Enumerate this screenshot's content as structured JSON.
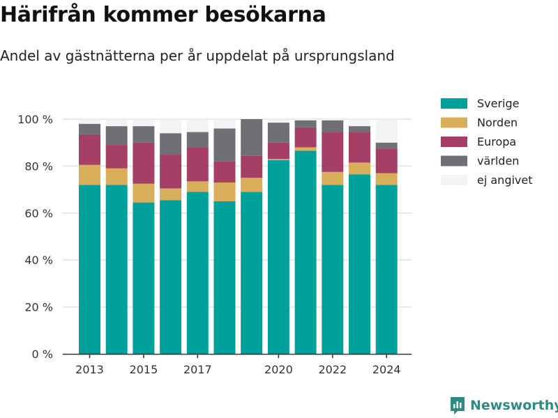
{
  "header": {
    "title": "Härifrån kommer besökarna",
    "subtitle": "Andel av gästnätterna per år uppdelat på ursprungsland"
  },
  "brand": {
    "name": "Newsworthy",
    "icon": "newsworthy-logo-icon"
  },
  "chart_data": {
    "type": "bar",
    "stacked": true,
    "x": [
      2013,
      2014,
      2015,
      2016,
      2017,
      2018,
      2019,
      2020,
      2021,
      2022,
      2023,
      2024
    ],
    "x_tick_labels": [
      "2013",
      "2015",
      "2017",
      "2020",
      "2022",
      "2024"
    ],
    "x_tick_values": [
      2013,
      2015,
      2017,
      2020,
      2022,
      2024
    ],
    "ylim": [
      0,
      100
    ],
    "y_ticks": [
      0,
      20,
      40,
      60,
      80,
      100
    ],
    "y_tick_labels": [
      "0 %",
      "20 %",
      "40 %",
      "60 %",
      "80 %",
      "100 %"
    ],
    "grid": true,
    "legend_position": "top-right",
    "series": [
      {
        "name": "Sverige",
        "color": "#00a19a",
        "values": [
          72,
          72,
          64.5,
          65.5,
          69,
          65,
          69,
          82.5,
          86.5,
          72,
          76.5,
          72
        ]
      },
      {
        "name": "Norden",
        "color": "#d8ae5a",
        "values": [
          8.5,
          7,
          8,
          5,
          4.5,
          8,
          6,
          0.5,
          1.5,
          5.5,
          5,
          5
        ]
      },
      {
        "name": "Europa",
        "color": "#a63f66",
        "values": [
          13,
          10,
          17.5,
          14.5,
          14.5,
          9,
          9.5,
          7,
          8.5,
          17,
          13,
          10.5
        ]
      },
      {
        "name": "världen",
        "color": "#6f7075",
        "values": [
          4.5,
          8,
          7,
          9,
          6.5,
          14,
          15.5,
          8.5,
          3,
          5,
          2.5,
          2.5
        ]
      },
      {
        "name": "ej angivet",
        "color": "#f3f3f4",
        "values": [
          2,
          3,
          3,
          6,
          5.5,
          4,
          0,
          1.5,
          0.5,
          0.5,
          3,
          10
        ]
      }
    ]
  }
}
